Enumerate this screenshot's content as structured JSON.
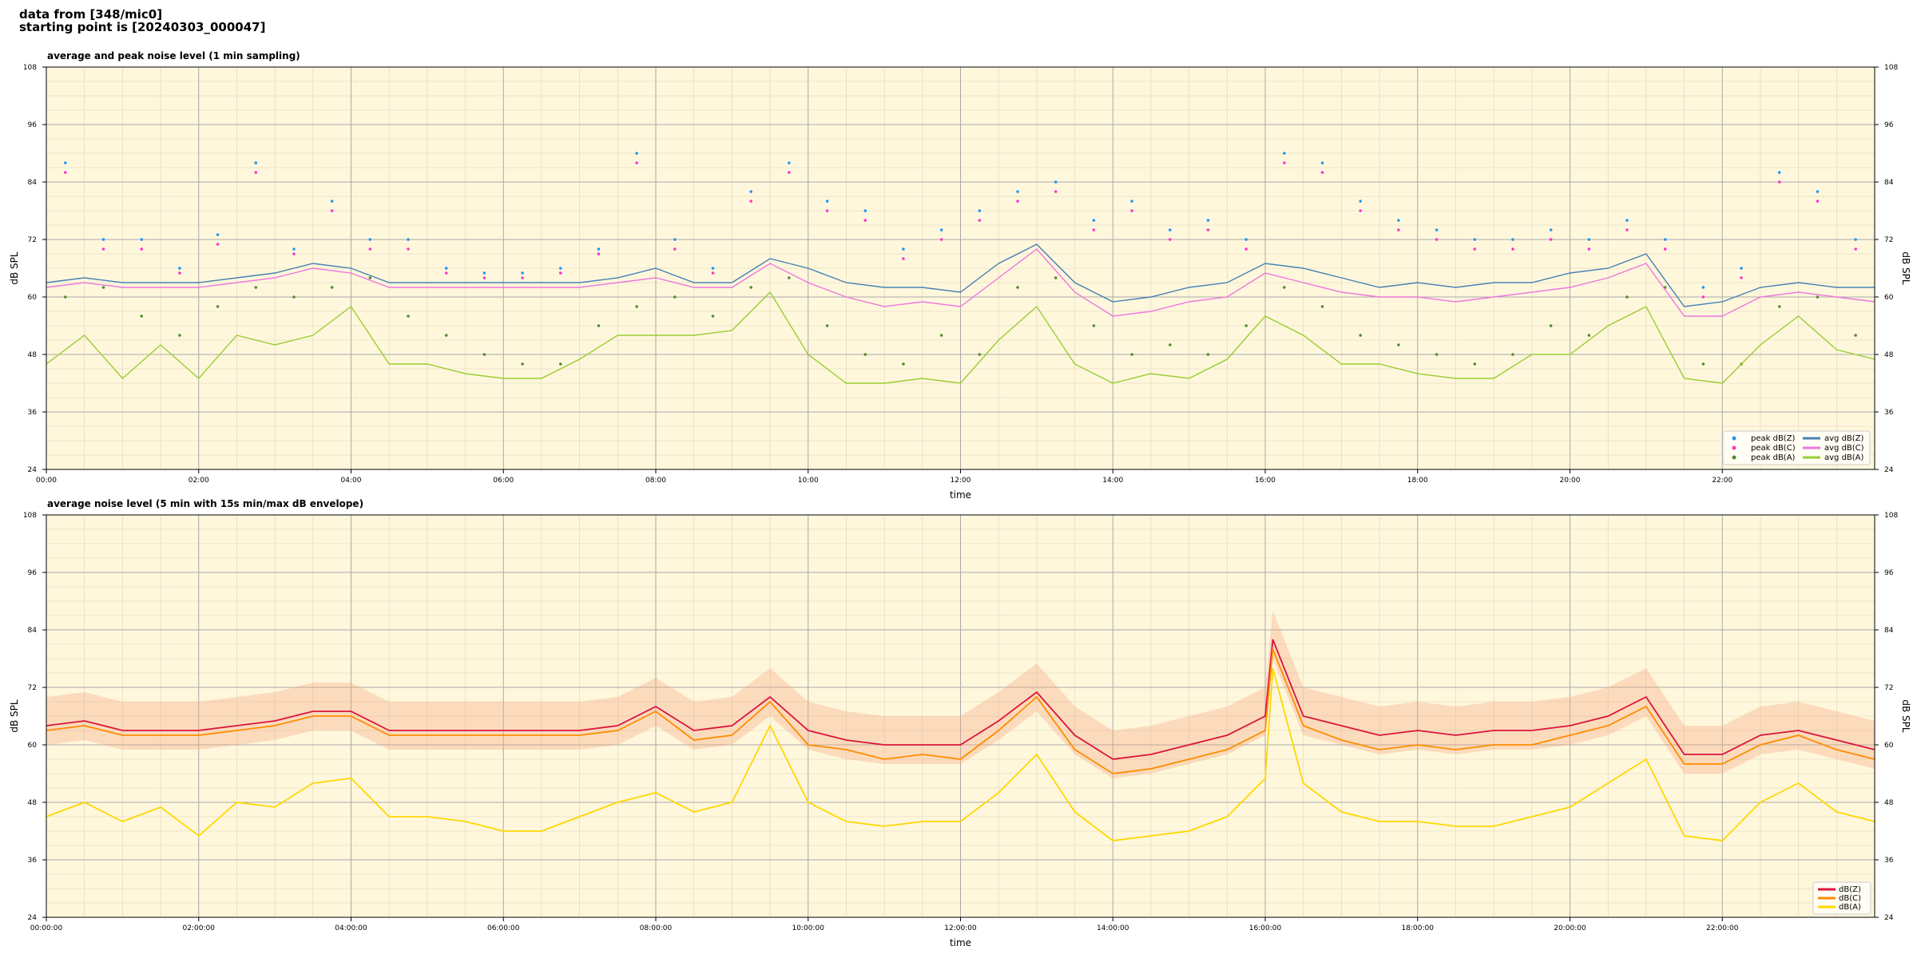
{
  "header": {
    "line1": "data from [348/mic0]",
    "line2": "starting point is [20240303_000047]"
  },
  "colors": {
    "plot_bg": "#fff7dc",
    "peak_z": "#2196f3",
    "peak_c": "#ff33cc",
    "peak_a": "#558b2f",
    "avg_z": "#4682b4",
    "avg_c": "#ee77dd",
    "avg_a": "#9acd32",
    "db_z": "#dc143c",
    "db_c": "#ff8c00",
    "db_a": "#ffd700",
    "envelope": "#f4a582"
  },
  "chart_data": [
    {
      "type": "line",
      "title": "average and peak noise level (1 min sampling)",
      "xlabel": "time",
      "ylabel": "dB SPL",
      "ylim": [
        24,
        108
      ],
      "xlim_hours": [
        0,
        24
      ],
      "yticks": [
        24,
        36,
        48,
        60,
        72,
        84,
        96,
        108
      ],
      "xtick_labels": [
        "00:00",
        "02:00",
        "04:00",
        "06:00",
        "08:00",
        "10:00",
        "12:00",
        "14:00",
        "16:00",
        "18:00",
        "20:00",
        "22:00"
      ],
      "grid": true,
      "legend_placement": "bottom-right",
      "legend": [
        "peak dB(Z)",
        "peak dB(C)",
        "peak dB(A)",
        "avg dB(Z)",
        "avg dB(C)",
        "avg dB(A)"
      ],
      "series": [
        {
          "name": "avg dB(Z)",
          "key": "avg_z",
          "x": [
            0,
            0.5,
            1,
            1.5,
            2,
            2.5,
            3,
            3.5,
            4,
            4.5,
            5,
            5.5,
            6,
            6.5,
            7,
            7.5,
            8,
            8.5,
            9,
            9.5,
            10,
            10.5,
            11,
            11.5,
            12,
            12.5,
            13,
            13.5,
            14,
            14.5,
            15,
            15.5,
            16,
            16.5,
            17,
            17.5,
            18,
            18.5,
            19,
            19.5,
            20,
            20.5,
            21,
            21.5,
            22,
            22.5,
            23,
            23.5,
            24
          ],
          "values": [
            63,
            64,
            63,
            63,
            63,
            64,
            65,
            67,
            66,
            63,
            63,
            63,
            63,
            63,
            63,
            64,
            66,
            63,
            63,
            68,
            66,
            63,
            62,
            62,
            61,
            67,
            71,
            63,
            59,
            60,
            62,
            63,
            67,
            66,
            64,
            62,
            63,
            62,
            63,
            63,
            65,
            66,
            69,
            58,
            59,
            62,
            63,
            62,
            62
          ]
        },
        {
          "name": "avg dB(C)",
          "key": "avg_c",
          "x": [
            0,
            0.5,
            1,
            1.5,
            2,
            2.5,
            3,
            3.5,
            4,
            4.5,
            5,
            5.5,
            6,
            6.5,
            7,
            7.5,
            8,
            8.5,
            9,
            9.5,
            10,
            10.5,
            11,
            11.5,
            12,
            12.5,
            13,
            13.5,
            14,
            14.5,
            15,
            15.5,
            16,
            16.5,
            17,
            17.5,
            18,
            18.5,
            19,
            19.5,
            20,
            20.5,
            21,
            21.5,
            22,
            22.5,
            23,
            23.5,
            24
          ],
          "values": [
            62,
            63,
            62,
            62,
            62,
            63,
            64,
            66,
            65,
            62,
            62,
            62,
            62,
            62,
            62,
            63,
            64,
            62,
            62,
            67,
            63,
            60,
            58,
            59,
            58,
            64,
            70,
            61,
            56,
            57,
            59,
            60,
            65,
            63,
            61,
            60,
            60,
            59,
            60,
            61,
            62,
            64,
            67,
            56,
            56,
            60,
            61,
            60,
            59
          ]
        },
        {
          "name": "avg dB(A)",
          "key": "avg_a",
          "x": [
            0,
            0.5,
            1,
            1.5,
            2,
            2.5,
            3,
            3.5,
            4,
            4.5,
            5,
            5.5,
            6,
            6.5,
            7,
            7.5,
            8,
            8.5,
            9,
            9.5,
            10,
            10.5,
            11,
            11.5,
            12,
            12.5,
            13,
            13.5,
            14,
            14.5,
            15,
            15.5,
            16,
            16.5,
            17,
            17.5,
            18,
            18.5,
            19,
            19.5,
            20,
            20.5,
            21,
            21.5,
            22,
            22.5,
            23,
            23.5,
            24
          ],
          "values": [
            46,
            52,
            43,
            50,
            43,
            52,
            50,
            52,
            58,
            46,
            46,
            44,
            43,
            43,
            47,
            52,
            52,
            52,
            53,
            61,
            48,
            42,
            42,
            43,
            42,
            51,
            58,
            46,
            42,
            44,
            43,
            47,
            56,
            52,
            46,
            46,
            44,
            43,
            43,
            48,
            48,
            54,
            58,
            43,
            42,
            50,
            56,
            49,
            47
          ]
        },
        {
          "name": "peak dB(Z)",
          "key": "peak_z",
          "x": [
            0.25,
            0.75,
            1.25,
            1.75,
            2.25,
            2.75,
            3.25,
            3.75,
            4.25,
            4.75,
            5.25,
            5.75,
            6.25,
            6.75,
            7.25,
            7.75,
            8.25,
            8.75,
            9.25,
            9.75,
            10.25,
            10.75,
            11.25,
            11.75,
            12.25,
            12.75,
            13.25,
            13.75,
            14.25,
            14.75,
            15.25,
            15.75,
            16.25,
            16.75,
            17.25,
            17.75,
            18.25,
            18.75,
            19.25,
            19.75,
            20.25,
            20.75,
            21.25,
            21.75,
            22.25,
            22.75,
            23.25,
            23.75
          ],
          "values": [
            88,
            72,
            72,
            66,
            73,
            88,
            70,
            80,
            72,
            72,
            66,
            65,
            65,
            66,
            70,
            90,
            72,
            66,
            82,
            88,
            80,
            78,
            70,
            74,
            78,
            82,
            84,
            76,
            80,
            74,
            76,
            72,
            90,
            88,
            80,
            76,
            74,
            72,
            72,
            74,
            72,
            76,
            72,
            62,
            66,
            86,
            82,
            72
          ]
        },
        {
          "name": "peak dB(C)",
          "key": "peak_c",
          "x": [
            0.25,
            0.75,
            1.25,
            1.75,
            2.25,
            2.75,
            3.25,
            3.75,
            4.25,
            4.75,
            5.25,
            5.75,
            6.25,
            6.75,
            7.25,
            7.75,
            8.25,
            8.75,
            9.25,
            9.75,
            10.25,
            10.75,
            11.25,
            11.75,
            12.25,
            12.75,
            13.25,
            13.75,
            14.25,
            14.75,
            15.25,
            15.75,
            16.25,
            16.75,
            17.25,
            17.75,
            18.25,
            18.75,
            19.25,
            19.75,
            20.25,
            20.75,
            21.25,
            21.75,
            22.25,
            22.75,
            23.25,
            23.75
          ],
          "values": [
            86,
            70,
            70,
            65,
            71,
            86,
            69,
            78,
            70,
            70,
            65,
            64,
            64,
            65,
            69,
            88,
            70,
            65,
            80,
            86,
            78,
            76,
            68,
            72,
            76,
            80,
            82,
            74,
            78,
            72,
            74,
            70,
            88,
            86,
            78,
            74,
            72,
            70,
            70,
            72,
            70,
            74,
            70,
            60,
            64,
            84,
            80,
            70
          ]
        },
        {
          "name": "peak dB(A)",
          "key": "peak_a",
          "x": [
            0.25,
            0.75,
            1.25,
            1.75,
            2.25,
            2.75,
            3.25,
            3.75,
            4.25,
            4.75,
            5.25,
            5.75,
            6.25,
            6.75,
            7.25,
            7.75,
            8.25,
            8.75,
            9.25,
            9.75,
            10.25,
            10.75,
            11.25,
            11.75,
            12.25,
            12.75,
            13.25,
            13.75,
            14.25,
            14.75,
            15.25,
            15.75,
            16.25,
            16.75,
            17.25,
            17.75,
            18.25,
            18.75,
            19.25,
            19.75,
            20.25,
            20.75,
            21.25,
            21.75,
            22.25,
            22.75,
            23.25,
            23.75
          ],
          "values": [
            60,
            62,
            56,
            52,
            58,
            62,
            60,
            62,
            64,
            56,
            52,
            48,
            46,
            46,
            54,
            58,
            60,
            56,
            62,
            64,
            54,
            48,
            46,
            52,
            48,
            62,
            64,
            54,
            48,
            50,
            48,
            54,
            62,
            58,
            52,
            50,
            48,
            46,
            48,
            54,
            52,
            60,
            62,
            46,
            46,
            58,
            60,
            52
          ]
        }
      ]
    },
    {
      "type": "area",
      "title": "average noise level (5 min with 15s min/max dB envelope)",
      "xlabel": "time",
      "ylabel": "dB SPL",
      "ylim": [
        24,
        108
      ],
      "xlim_hours": [
        0,
        24
      ],
      "yticks": [
        24,
        36,
        48,
        60,
        72,
        84,
        96,
        108
      ],
      "xtick_labels": [
        "00:00:00",
        "02:00:00",
        "04:00:00",
        "06:00:00",
        "08:00:00",
        "10:00:00",
        "12:00:00",
        "14:00:00",
        "16:00:00",
        "18:00:00",
        "20:00:00",
        "22:00:00"
      ],
      "grid": true,
      "legend_placement": "bottom-right",
      "legend": [
        "dB(Z)",
        "dB(C)",
        "dB(A)"
      ],
      "series": [
        {
          "name": "dB(Z)",
          "key": "db_z",
          "x": [
            0,
            0.5,
            1,
            1.5,
            2,
            2.5,
            3,
            3.5,
            4,
            4.5,
            5,
            5.5,
            6,
            6.5,
            7,
            7.5,
            8,
            8.5,
            9,
            9.5,
            10,
            10.5,
            11,
            11.5,
            12,
            12.5,
            13,
            13.5,
            14,
            14.5,
            15,
            15.5,
            16,
            16.1,
            16.5,
            17,
            17.5,
            18,
            18.5,
            19,
            19.5,
            20,
            20.5,
            21,
            21.5,
            22,
            22.5,
            23,
            23.5,
            24
          ],
          "values": [
            64,
            65,
            63,
            63,
            63,
            64,
            65,
            67,
            67,
            63,
            63,
            63,
            63,
            63,
            63,
            64,
            68,
            63,
            64,
            70,
            63,
            61,
            60,
            60,
            60,
            65,
            71,
            62,
            57,
            58,
            60,
            62,
            66,
            82,
            66,
            64,
            62,
            63,
            62,
            63,
            63,
            64,
            66,
            70,
            58,
            58,
            62,
            63,
            61,
            59
          ]
        },
        {
          "name": "dB(C)",
          "key": "db_c",
          "x": [
            0,
            0.5,
            1,
            1.5,
            2,
            2.5,
            3,
            3.5,
            4,
            4.5,
            5,
            5.5,
            6,
            6.5,
            7,
            7.5,
            8,
            8.5,
            9,
            9.5,
            10,
            10.5,
            11,
            11.5,
            12,
            12.5,
            13,
            13.5,
            14,
            14.5,
            15,
            15.5,
            16,
            16.1,
            16.5,
            17,
            17.5,
            18,
            18.5,
            19,
            19.5,
            20,
            20.5,
            21,
            21.5,
            22,
            22.5,
            23,
            23.5,
            24
          ],
          "values": [
            63,
            64,
            62,
            62,
            62,
            63,
            64,
            66,
            66,
            62,
            62,
            62,
            62,
            62,
            62,
            63,
            67,
            61,
            62,
            69,
            60,
            59,
            57,
            58,
            57,
            63,
            70,
            59,
            54,
            55,
            57,
            59,
            63,
            80,
            64,
            61,
            59,
            60,
            59,
            60,
            60,
            62,
            64,
            68,
            56,
            56,
            60,
            62,
            59,
            57
          ]
        },
        {
          "name": "dB(A)",
          "key": "db_a",
          "x": [
            0,
            0.5,
            1,
            1.5,
            2,
            2.5,
            3,
            3.5,
            4,
            4.5,
            5,
            5.5,
            6,
            6.5,
            7,
            7.5,
            8,
            8.5,
            9,
            9.5,
            10,
            10.5,
            11,
            11.5,
            12,
            12.5,
            13,
            13.5,
            14,
            14.5,
            15,
            15.5,
            16,
            16.1,
            16.5,
            17,
            17.5,
            18,
            18.5,
            19,
            19.5,
            20,
            20.5,
            21,
            21.5,
            22,
            22.5,
            23,
            23.5,
            24
          ],
          "values": [
            45,
            48,
            44,
            47,
            41,
            48,
            47,
            52,
            53,
            45,
            45,
            44,
            42,
            42,
            45,
            48,
            50,
            46,
            48,
            64,
            48,
            44,
            43,
            44,
            44,
            50,
            58,
            46,
            40,
            41,
            42,
            45,
            53,
            76,
            52,
            46,
            44,
            44,
            43,
            43,
            45,
            47,
            52,
            57,
            41,
            40,
            48,
            52,
            46,
            44
          ]
        }
      ]
    }
  ]
}
